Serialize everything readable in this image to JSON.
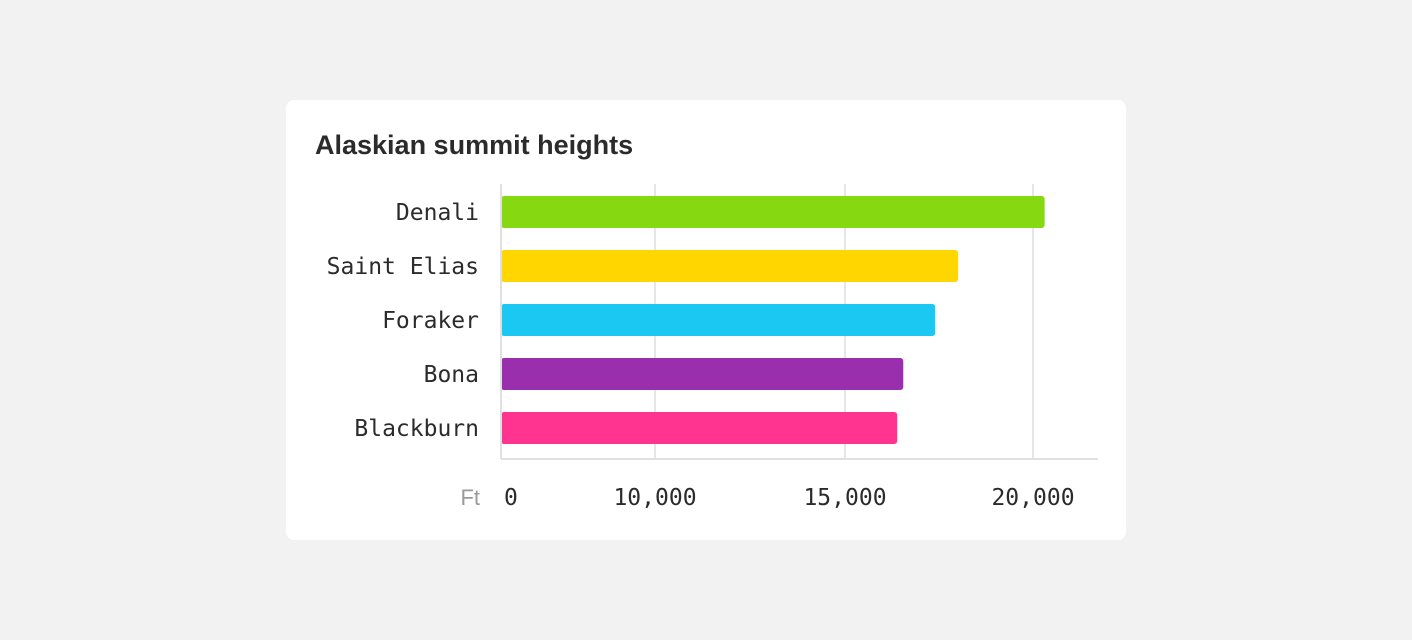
{
  "chart_data": {
    "type": "bar",
    "orientation": "horizontal",
    "title": "Alaskian summit heights",
    "unit_label": "Ft",
    "categories": [
      "Denali",
      "Saint Elias",
      "Foraker",
      "Bona",
      "Blackburn"
    ],
    "values": [
      20310,
      18008,
      17400,
      16550,
      16390
    ],
    "colors": [
      "#86d911",
      "#ffd600",
      "#1ac8f2",
      "#992fac",
      "#ff3390"
    ],
    "xticks": [
      0,
      10000,
      15000,
      20000
    ],
    "xtick_labels": [
      "0",
      "10,000",
      "15,000",
      "20,000"
    ],
    "grid": true,
    "legend": "none"
  }
}
